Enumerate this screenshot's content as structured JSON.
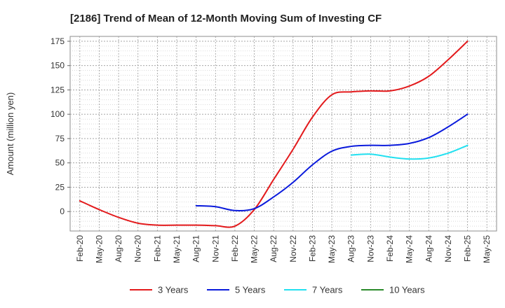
{
  "chart_data": {
    "type": "line",
    "title": "[2186]  Trend of Mean of 12-Month Moving Sum of Investing CF",
    "xlabel": "",
    "ylabel": "Amount (million yen)",
    "ylim": [
      -20,
      180
    ],
    "yticks": [
      0,
      25,
      50,
      75,
      100,
      125,
      150,
      175
    ],
    "grid": true,
    "legend_position": "bottom",
    "categories": [
      "Feb-20",
      "May-20",
      "Aug-20",
      "Nov-20",
      "Feb-21",
      "May-21",
      "Aug-21",
      "Nov-21",
      "Feb-22",
      "May-22",
      "Aug-22",
      "Nov-22",
      "Feb-23",
      "May-23",
      "Aug-23",
      "Nov-23",
      "Feb-24",
      "May-24",
      "Aug-24",
      "Nov-24",
      "Feb-25",
      "May-25"
    ],
    "series": [
      {
        "name": "3 Years",
        "color": "#e31a1c",
        "values": [
          11,
          2,
          -6,
          -12,
          -14,
          -14,
          -14,
          -14.5,
          -15,
          2,
          33,
          64,
          97,
          120,
          123,
          124,
          124,
          129,
          139,
          156,
          175,
          null
        ]
      },
      {
        "name": "5 Years",
        "color": "#0a1adc",
        "values": [
          null,
          null,
          null,
          null,
          null,
          null,
          6,
          5,
          1,
          3,
          15,
          30,
          48,
          62,
          67,
          68,
          68,
          70,
          76,
          87,
          100,
          null
        ]
      },
      {
        "name": "7 Years",
        "color": "#22e0f0",
        "values": [
          null,
          null,
          null,
          null,
          null,
          null,
          null,
          null,
          null,
          null,
          null,
          null,
          null,
          null,
          58,
          59,
          56,
          54,
          55,
          60,
          68,
          null
        ]
      },
      {
        "name": "10 Years",
        "color": "#2a8a2a",
        "values": [
          null,
          null,
          null,
          null,
          null,
          null,
          null,
          null,
          null,
          null,
          null,
          null,
          null,
          null,
          null,
          null,
          null,
          null,
          null,
          null,
          null,
          null
        ]
      }
    ]
  }
}
